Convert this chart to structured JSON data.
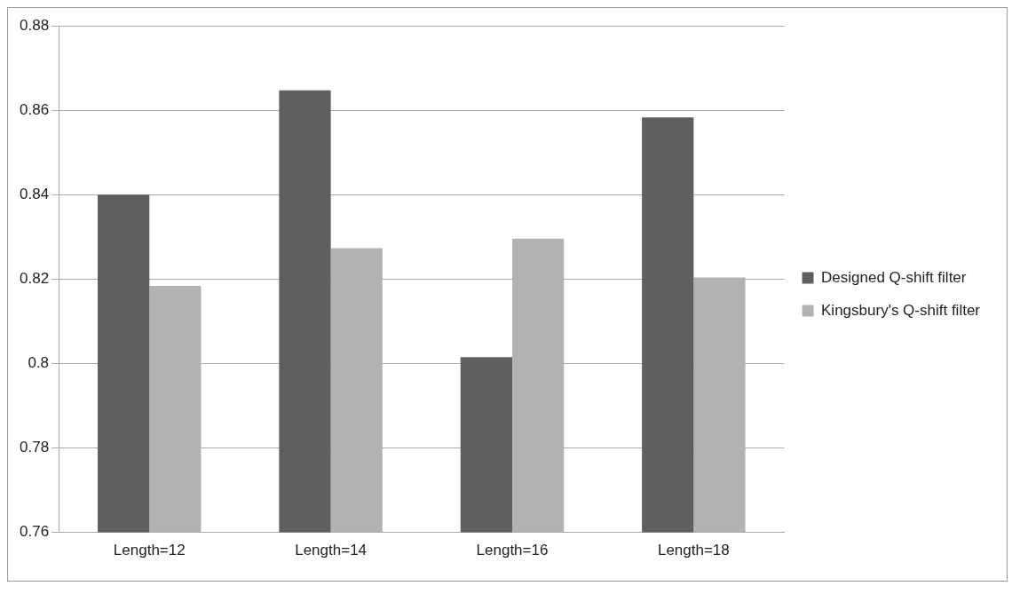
{
  "chart_data": {
    "type": "bar",
    "categories": [
      "Length=12",
      "Length=14",
      "Length=16",
      "Length=18"
    ],
    "series": [
      {
        "name": "Designed Q-shift filter",
        "color": "#5f5f5f",
        "values": [
          0.84,
          0.8647,
          0.8015,
          0.8583
        ]
      },
      {
        "name": "Kingsbury's Q-shift filter",
        "color": "#b2b2b2",
        "values": [
          0.8184,
          0.8273,
          0.8296,
          0.8204
        ]
      }
    ],
    "ylim": [
      0.76,
      0.88
    ],
    "yticks": [
      0.76,
      0.78,
      0.8,
      0.82,
      0.84,
      0.86,
      0.88
    ],
    "grid": "y",
    "legend": "right"
  }
}
